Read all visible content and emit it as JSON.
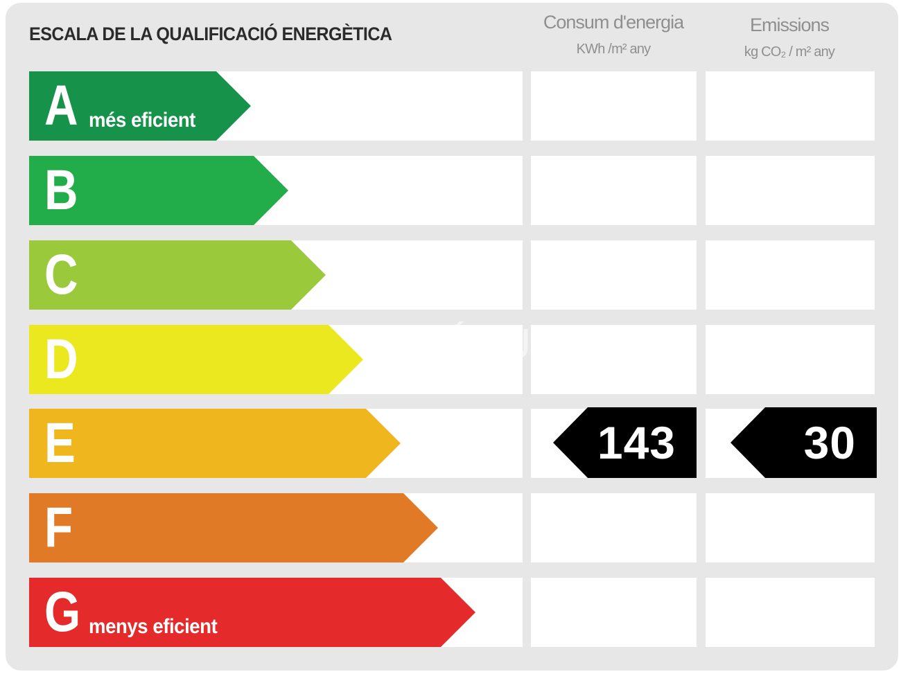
{
  "title": "ESCALA DE LA QUALIFICACIÓ ENERGÈTICA",
  "columns": {
    "consum": {
      "label": "Consum d'energia",
      "unit": "KWh /m² any"
    },
    "emissions": {
      "label": "Emissions",
      "unit": "kg CO₂ / m² any"
    }
  },
  "ratings": [
    {
      "letter": "A",
      "note": "més eficient",
      "color": "#17924b"
    },
    {
      "letter": "B",
      "note": "",
      "color": "#22ad4a"
    },
    {
      "letter": "C",
      "note": "",
      "color": "#9bc93c"
    },
    {
      "letter": "D",
      "note": "",
      "color": "#ebe81f"
    },
    {
      "letter": "E",
      "note": "",
      "color": "#efb61d"
    },
    {
      "letter": "F",
      "note": "",
      "color": "#e07a27"
    },
    {
      "letter": "G",
      "note": "menys eficient",
      "color": "#e42a2a"
    }
  ],
  "result": {
    "rating": "E",
    "consum_value": "143",
    "emissions_value": "30"
  },
  "watermark": "ESPÍGUL"
}
